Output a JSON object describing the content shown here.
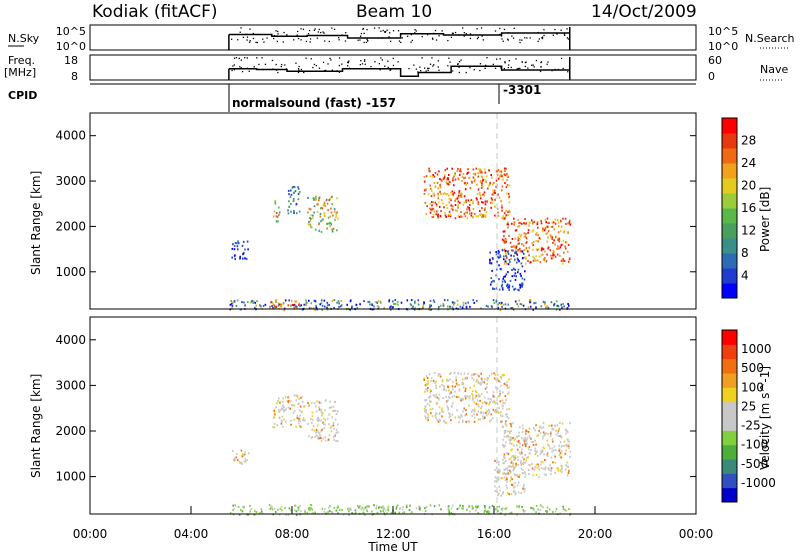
{
  "header": {
    "station": "Kodiak (fitACF)",
    "beam": "Beam 10",
    "date": "14/Oct/2009"
  },
  "noise_panel": {
    "left_label": "N.Sky",
    "left_ticks": [
      "10^5",
      "10^0"
    ],
    "right_ticks": [
      "10^5",
      "10^0"
    ],
    "right_label": "N.Search"
  },
  "freq_panel": {
    "left_label_1": "Freq.",
    "left_label_2": "[MHz]",
    "left_ticks": [
      "18",
      "8"
    ],
    "right_ticks": [
      "60",
      "0"
    ],
    "right_label": "Nave"
  },
  "cpid": {
    "label": "CPID",
    "mode1": "normalsound (fast) -157",
    "mode2": "-3301"
  },
  "colors": {
    "frame": "#000000",
    "dashed_marker": "#c8c8c8"
  },
  "chart_data": [
    {
      "type": "heatmap",
      "title": "",
      "xlabel": "",
      "ylabel": "Slant Range [km]",
      "xlim_hours": [
        0,
        24
      ],
      "ylim_km": [
        180,
        4500
      ],
      "yticks": [
        "1000",
        "2000",
        "3000",
        "4000"
      ],
      "colorbar_label": "Power [dB]",
      "colorbar_ticks": [
        "4",
        "8",
        "12",
        "16",
        "20",
        "24",
        "28"
      ],
      "colorbar_colors": [
        "#0000ff",
        "#203cd0",
        "#2d6bb5",
        "#3a8f8a",
        "#4c9e5c",
        "#59b84a",
        "#9ccc3c",
        "#e3cc1f",
        "#f2a11c",
        "#f06a14",
        "#e8380f",
        "#ff0000"
      ],
      "data_start_hour": 5.5,
      "data_end_hour": 19.0,
      "mode_change_hour": 16.3,
      "regions": [
        {
          "h0": 5.5,
          "h1": 19.0,
          "r0": 180,
          "r1": 400,
          "level": "mixed-low"
        },
        {
          "h0": 7.0,
          "h1": 8.3,
          "r0": 180,
          "r1": 350,
          "level": "high"
        },
        {
          "h0": 5.6,
          "h1": 6.3,
          "r0": 1300,
          "r1": 1700,
          "level": "low"
        },
        {
          "h0": 7.2,
          "h1": 7.5,
          "r0": 2100,
          "r1": 2600,
          "level": "mid-high"
        },
        {
          "h0": 7.8,
          "h1": 8.3,
          "r0": 2300,
          "r1": 2900,
          "level": "mid"
        },
        {
          "h0": 8.6,
          "h1": 9.8,
          "r0": 1900,
          "r1": 2700,
          "level": "mid-high"
        },
        {
          "h0": 13.2,
          "h1": 16.6,
          "r0": 2200,
          "r1": 3300,
          "level": "high"
        },
        {
          "h0": 16.3,
          "h1": 19.0,
          "r0": 1200,
          "r1": 2200,
          "level": "high"
        },
        {
          "h0": 15.8,
          "h1": 17.2,
          "r0": 600,
          "r1": 1500,
          "level": "low"
        }
      ]
    },
    {
      "type": "heatmap",
      "title": "",
      "xlabel": "Time UT",
      "ylabel": "Slant Range [km]",
      "xlim_hours": [
        0,
        24
      ],
      "ylim_km": [
        180,
        4500
      ],
      "yticks": [
        "1000",
        "2000",
        "3000",
        "4000"
      ],
      "xticks": [
        "00:00",
        "04:00",
        "08:00",
        "12:00",
        "16:00",
        "20:00",
        "00:00"
      ],
      "colorbar_label": "Velocity [m s^-1]",
      "colorbar_ticks": [
        "1000",
        "500",
        "100",
        "25",
        "-25",
        "-100",
        "-500",
        "-1000"
      ],
      "colorbar_colors": [
        "#0000cc",
        "#3050c0",
        "#3a8a7a",
        "#4caf3c",
        "#80d040",
        "#c8c8c8",
        "#c8c8c8",
        "#f0d020",
        "#f0a020",
        "#f07010",
        "#f04010",
        "#ff0000"
      ],
      "data_start_hour": 5.5,
      "data_end_hour": 19.0,
      "regions": [
        {
          "h0": 5.5,
          "h1": 19.0,
          "r0": 180,
          "r1": 400,
          "level": "green"
        },
        {
          "h0": 5.6,
          "h1": 6.3,
          "r0": 1300,
          "r1": 1600,
          "level": "gray"
        },
        {
          "h0": 7.2,
          "h1": 8.5,
          "r0": 2100,
          "r1": 2800,
          "level": "gray"
        },
        {
          "h0": 8.6,
          "h1": 9.8,
          "r0": 1800,
          "r1": 2700,
          "level": "gray"
        },
        {
          "h0": 13.2,
          "h1": 16.6,
          "r0": 2200,
          "r1": 3300,
          "level": "gray"
        },
        {
          "h0": 16.3,
          "h1": 19.0,
          "r0": 1000,
          "r1": 2200,
          "level": "gray"
        },
        {
          "h0": 16.0,
          "h1": 17.2,
          "r0": 600,
          "r1": 1400,
          "level": "gray"
        }
      ]
    }
  ],
  "cpid_marker_hours": [
    5.5,
    16.3
  ],
  "time_series": {
    "noise_sky_hours": [
      5.5,
      7.2,
      8.6,
      10.2,
      12.3,
      14.0,
      16.3,
      19.0
    ],
    "noise_sky_level": [
      0.62,
      0.55,
      0.58,
      0.48,
      0.65,
      0.6,
      0.68,
      0.68
    ],
    "freq_hours": [
      5.5,
      6.6,
      7.8,
      10.0,
      12.3,
      13.0,
      14.3,
      16.3,
      19.0
    ],
    "freq_level": [
      0.45,
      0.42,
      0.35,
      0.45,
      0.15,
      0.3,
      0.55,
      0.4,
      0.4
    ]
  }
}
